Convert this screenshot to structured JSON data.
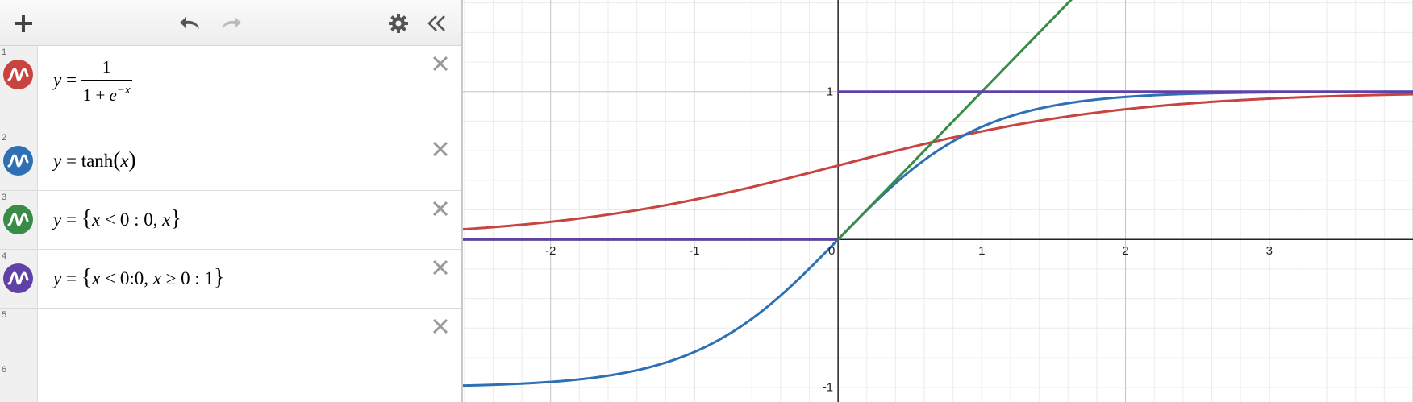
{
  "toolbar": {
    "add_icon": "plus-icon",
    "undo_icon": "undo-icon",
    "redo_icon": "redo-icon",
    "settings_icon": "gear-icon",
    "collapse_icon": "double-chevron-left-icon"
  },
  "expressions": [
    {
      "index": "1",
      "color": "#c74440",
      "lhs": "y",
      "eq": "=",
      "num": "1",
      "den_prefix": "1 + ",
      "den_base": "e",
      "den_exp": "−x"
    },
    {
      "index": "2",
      "color": "#2d70b3",
      "lhs": "y",
      "eq": "=",
      "fn": "tanh",
      "open": "(",
      "arg": "x",
      "close": ")"
    },
    {
      "index": "3",
      "color": "#388c46",
      "lhs": "y",
      "eq": "=",
      "open": "{",
      "cond_var": "x",
      "cond_op": " < ",
      "cond_val": "0",
      "sep": " : ",
      "val1": "0",
      "comma": ", ",
      "val2": "x",
      "close": "}"
    },
    {
      "index": "4",
      "color": "#6042a6",
      "lhs": "y",
      "eq": "=",
      "open": "{",
      "c1_var": "x",
      "c1_op": " < ",
      "c1_val": "0",
      "c1_sep": ":",
      "c1_res": "0",
      "comma": ", ",
      "c2_var": "x",
      "c2_op": " ≥ ",
      "c2_val": "0",
      "c2_sep": " : ",
      "c2_res": "1",
      "close": "}"
    },
    {
      "index": "5"
    },
    {
      "index": "6"
    }
  ],
  "graph": {
    "x_ticks": [
      {
        "value": -2,
        "label": "-2"
      },
      {
        "value": -1,
        "label": "-1"
      },
      {
        "value": 0,
        "label": "0"
      },
      {
        "value": 1,
        "label": "1"
      },
      {
        "value": 2,
        "label": "2"
      },
      {
        "value": 3,
        "label": "3"
      }
    ],
    "y_ticks": [
      {
        "value": 1,
        "label": "1"
      },
      {
        "value": -1,
        "label": "-1"
      }
    ],
    "x_range": [
      -2.61,
      4.0
    ],
    "y_range": [
      -1.1,
      1.62
    ],
    "curves": [
      {
        "name": "sigmoid",
        "color": "#c74440"
      },
      {
        "name": "tanh",
        "color": "#2d70b3"
      },
      {
        "name": "relu",
        "color": "#388c46"
      },
      {
        "name": "step",
        "color": "#6042a6"
      }
    ]
  }
}
